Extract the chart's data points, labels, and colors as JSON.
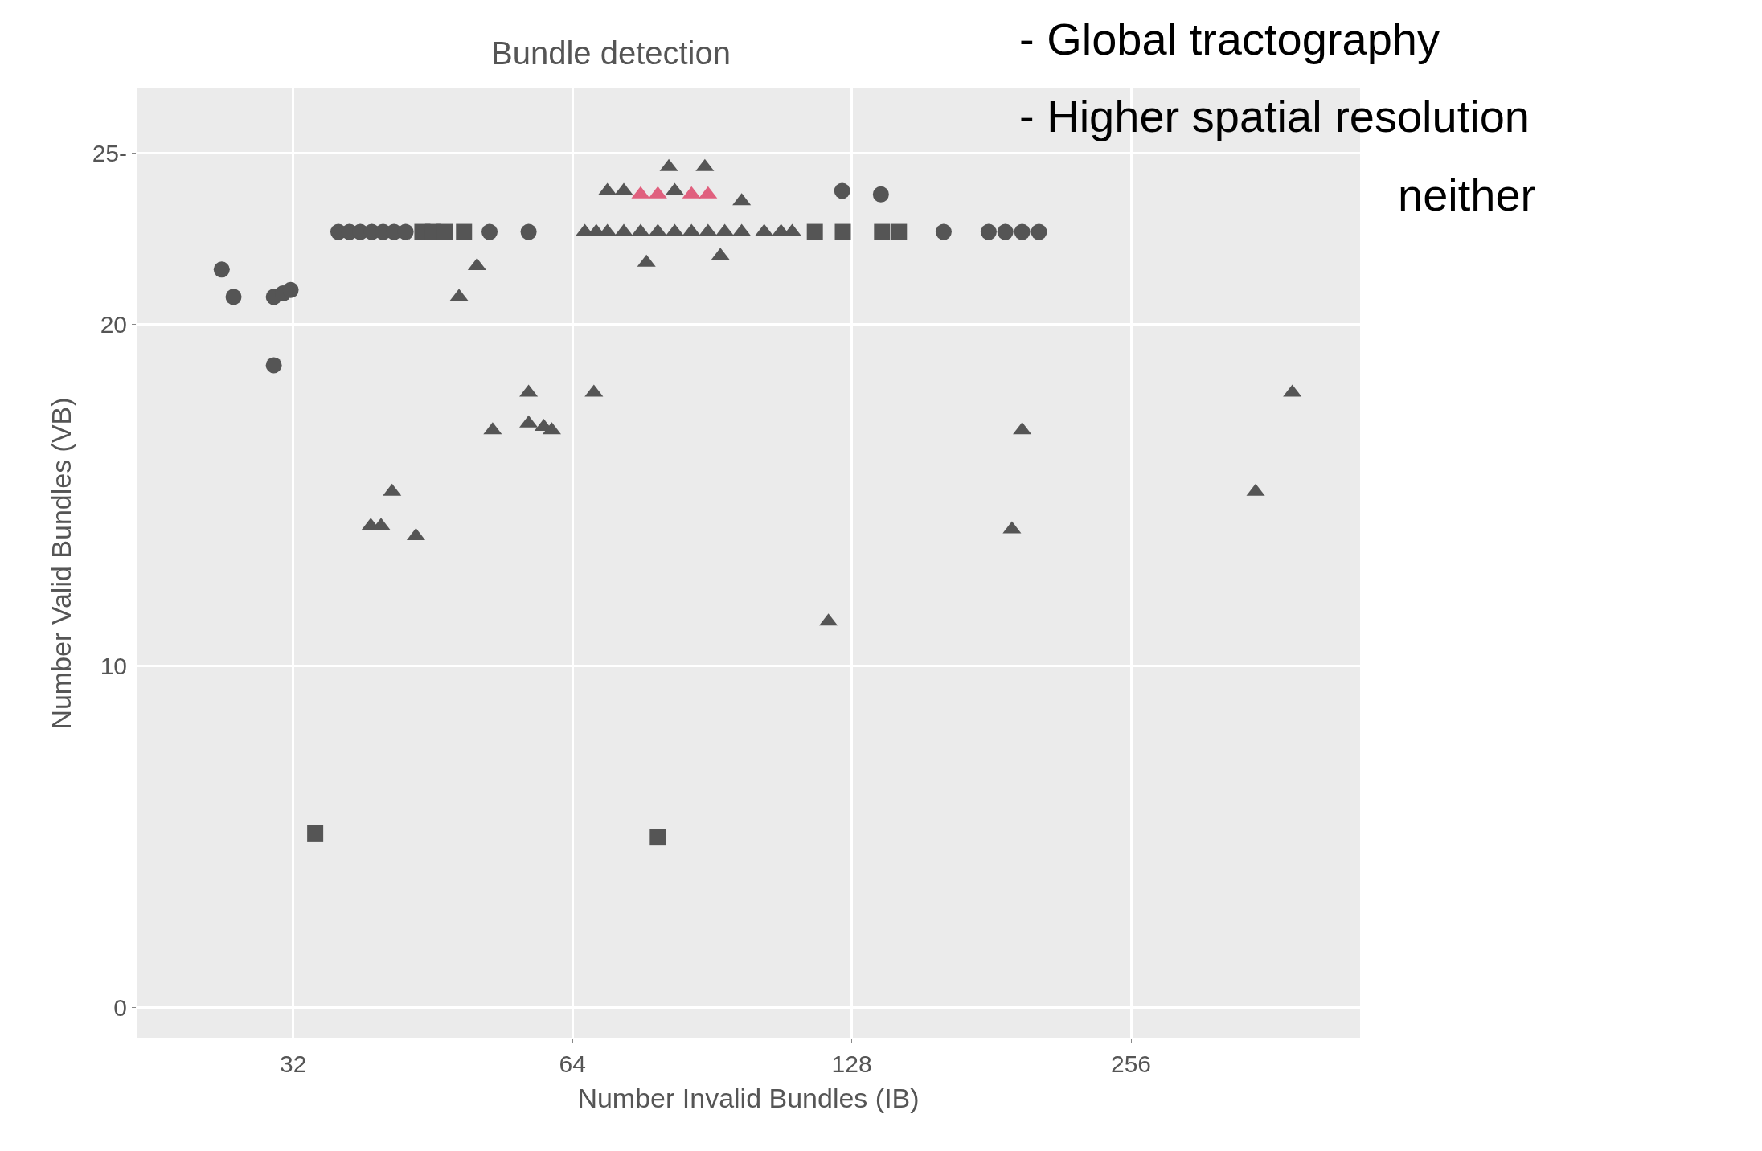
{
  "chart_data": {
    "type": "scatter",
    "title": "Bundle detection",
    "xlabel": "Number Invalid Bundles (IB)",
    "ylabel": "Number Valid Bundles (VB)",
    "log": "x",
    "grid": true,
    "xlim": [
      21.7,
      452
    ],
    "xticks": [
      32,
      64,
      128,
      256
    ],
    "ylim": [
      -0.9,
      26.9
    ],
    "yticks": [
      0,
      10,
      20,
      {
        "value": 25,
        "label": "25-"
      }
    ],
    "annotations": [
      "- Global tractography",
      "- Higher spatial resolution",
      "neither"
    ],
    "series": [
      {
        "marker": "circle",
        "color": "#555555",
        "x": [
          26.8,
          27.6,
          30.5,
          31.2,
          31.8,
          30.5,
          125,
          137.6,
          35.8,
          36.8,
          37.8,
          38.9,
          40.0,
          41.1,
          42.3,
          52.1,
          57.4,
          160.8,
          179.8,
          187.4,
          195.4,
          203.7
        ],
        "values": [
          21.6,
          20.8,
          20.8,
          20.9,
          21.0,
          18.8,
          23.9,
          23.8,
          22.7,
          22.7,
          22.7,
          22.7,
          22.7,
          22.7,
          22.7,
          22.7,
          22.7,
          22.7,
          22.7,
          22.7,
          22.7,
          22.7
        ]
      },
      {
        "marker": "square",
        "color": "#555555",
        "x": [
          33.8,
          79.1,
          44.1,
          45.3,
          46.6,
          47.9,
          48.9,
          116.8,
          125.2,
          138.0,
          143.9
        ],
        "values": [
          5.1,
          5.0,
          22.7,
          22.7,
          22.7,
          null,
          22.7,
          22.7,
          22.7,
          22.7,
          22.7
        ]
      },
      {
        "marker": "triangle",
        "color": "#555555",
        "x": [
          48.3,
          50.5,
          52.5,
          57.4,
          57.4,
          59.6,
          60.8,
          67.5,
          38.8,
          39.8,
          40.9,
          43.4,
          76.9,
          92.4,
          97.4,
          120.8,
          190.5,
          195.4,
          348.8,
          382,
          66.0,
          67.9,
          69.8,
          72.7,
          75.8,
          79.1,
          82.5,
          86.0,
          89.6,
          93.4,
          97.4,
          103.0,
          107.4,
          110.4,
          69.8,
          72.7,
          82.5,
          81.3,
          88.9
        ],
        "values": [
          20.8,
          21.7,
          16.9,
          18.0,
          17.1,
          17.0,
          16.9,
          18.0,
          14.1,
          14.1,
          15.1,
          13.8,
          21.8,
          22.0,
          23.6,
          11.3,
          14.0,
          16.9,
          15.1,
          18.0,
          22.7,
          22.7,
          22.7,
          22.7,
          22.7,
          22.7,
          22.7,
          22.7,
          22.7,
          22.7,
          22.7,
          22.7,
          22.7,
          22.7,
          23.9,
          23.9,
          23.9,
          24.6,
          24.6
        ]
      },
      {
        "marker": "triangle",
        "color": "#e0607e",
        "x": [
          75.8,
          79.1,
          86.0,
          89.6
        ],
        "values": [
          23.8,
          23.8,
          23.8,
          23.8
        ]
      }
    ]
  }
}
